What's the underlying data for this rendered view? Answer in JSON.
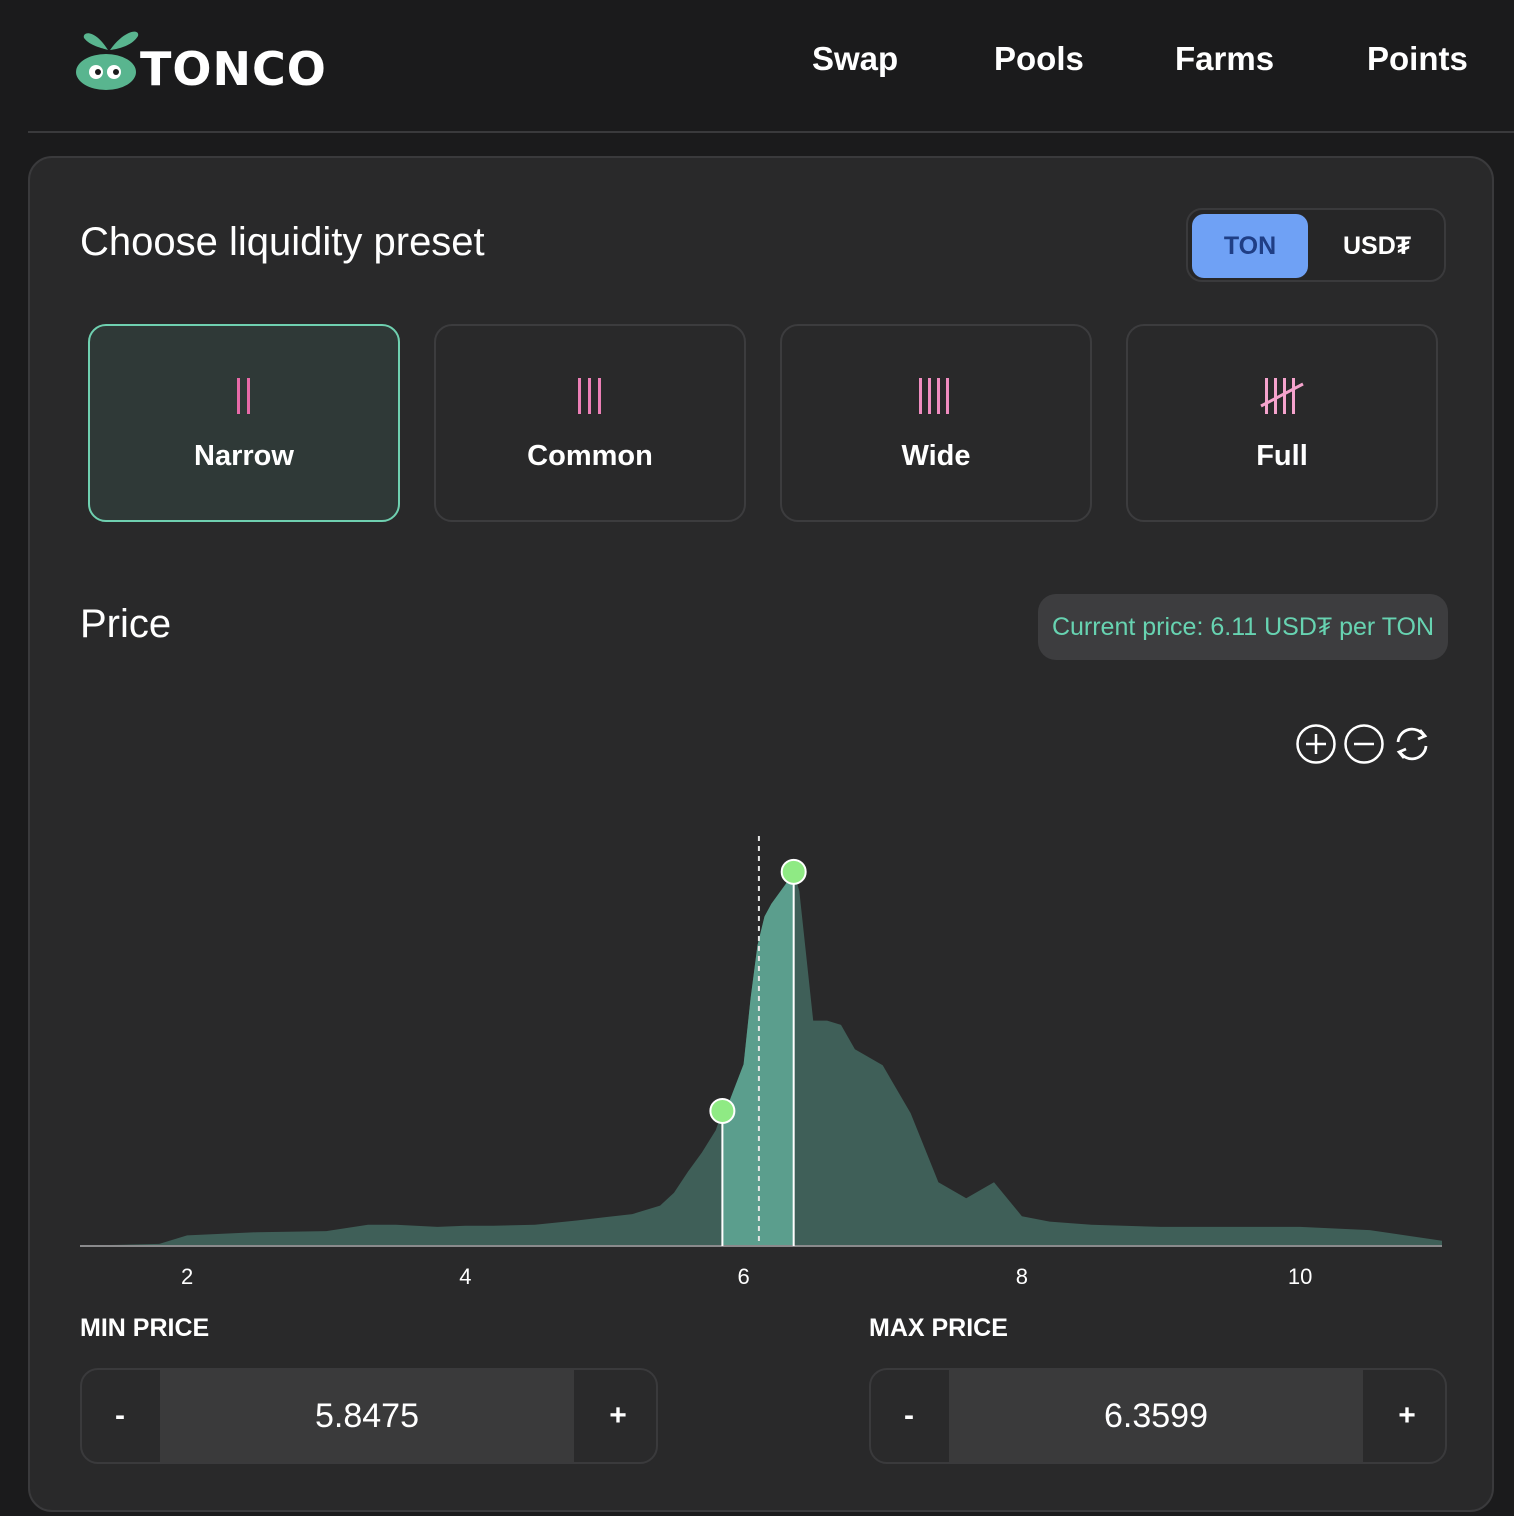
{
  "header": {
    "logo_text": "TONCO",
    "nav": [
      "Swap",
      "Pools",
      "Farms",
      "Points"
    ]
  },
  "card": {
    "preset_title": "Choose liquidity preset",
    "token_toggle": {
      "options": [
        "TON",
        "USD₮"
      ],
      "selected": "TON"
    },
    "presets": [
      {
        "label": "Narrow",
        "icon": "two-bars-icon",
        "selected": true
      },
      {
        "label": "Common",
        "icon": "three-bars-icon",
        "selected": false
      },
      {
        "label": "Wide",
        "icon": "four-bars-icon",
        "selected": false
      },
      {
        "label": "Full",
        "icon": "tally-five-icon",
        "selected": false
      }
    ],
    "price_title": "Price",
    "current_price_text": "Current price: 6.11 USD₮ per TON",
    "zoom_controls": [
      "zoom-in-icon",
      "zoom-out-icon",
      "reset-icon"
    ],
    "min_price": {
      "label": "MIN PRICE",
      "value": "5.8475",
      "minus": "-",
      "plus": "+"
    },
    "max_price": {
      "label": "MAX PRICE",
      "value": "6.3599",
      "minus": "-",
      "plus": "+"
    }
  },
  "colors": {
    "accent_green": "#67d3b1",
    "handle_green": "#8fea84",
    "toggle_blue": "#6fa1f5",
    "narrow_bar": "#e86aa8",
    "area_fill": "#3f5f58",
    "selected_fill": "#5b9e8d"
  },
  "chart_data": {
    "type": "area",
    "x_ticks": [
      2,
      4,
      6,
      8,
      10
    ],
    "xlim": [
      1.23,
      11.02
    ],
    "current_price": 6.11,
    "range": {
      "min": 5.8475,
      "max": 6.3599
    },
    "x": [
      1.23,
      1.5,
      1.8,
      2.0,
      2.5,
      3.0,
      3.3,
      3.5,
      3.8,
      4.0,
      4.2,
      4.5,
      4.8,
      5.0,
      5.2,
      5.4,
      5.5,
      5.6,
      5.7,
      5.8,
      5.85,
      5.9,
      6.0,
      6.05,
      6.1,
      6.15,
      6.2,
      6.3,
      6.36,
      6.4,
      6.5,
      6.6,
      6.7,
      6.8,
      7.0,
      7.2,
      7.4,
      7.6,
      7.8,
      8.0,
      8.2,
      8.5,
      9.0,
      9.5,
      10.0,
      10.5,
      11.02
    ],
    "y": [
      0.5,
      1,
      2,
      10,
      13,
      14,
      20,
      20,
      18,
      19,
      19,
      20,
      24,
      27,
      30,
      38,
      50,
      70,
      88,
      109,
      128,
      137,
      171,
      233,
      283,
      310,
      322,
      340,
      352,
      334,
      212,
      212,
      208,
      185,
      170,
      125,
      60,
      45,
      60,
      28,
      23,
      20,
      18,
      18,
      18,
      15,
      5
    ]
  }
}
